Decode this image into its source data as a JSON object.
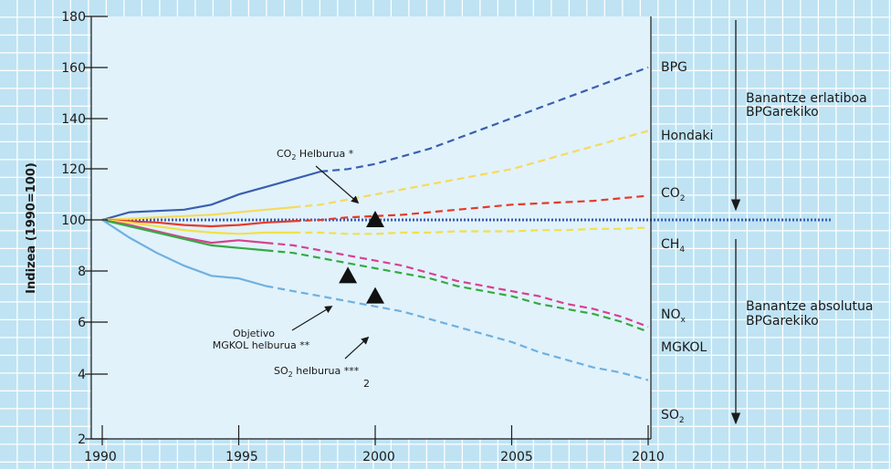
{
  "colors": {
    "background": "#bfe3f3",
    "background_grid": "#ffffff",
    "plot_area": "#e1f2fb",
    "axis": "#1a1a1a"
  },
  "chart_data": {
    "type": "line",
    "title": "",
    "xlabel": "",
    "ylabel": "Indizea (1990=100)",
    "xlim": [
      1990,
      2010
    ],
    "x_ticks": [
      "1990",
      "1995",
      "2000",
      "2005",
      "2010"
    ],
    "y_ticks": [
      "2",
      "4",
      "6",
      "8",
      "100",
      "120",
      "140",
      "160",
      "180"
    ],
    "y_scale": "custom broken axis: upper part 100–180 linear, lower part labelled 2–8 (index values below 100)",
    "grid": false,
    "series": [
      {
        "name": "BPG",
        "color": "#3a5fae",
        "solid_until": 1998,
        "points": [
          [
            1990,
            100
          ],
          [
            1991,
            103
          ],
          [
            1992,
            103.5
          ],
          [
            1993,
            104
          ],
          [
            1994,
            106
          ],
          [
            1995,
            110
          ],
          [
            1996,
            113
          ],
          [
            1997,
            116
          ],
          [
            1998,
            119
          ],
          [
            1999,
            120
          ],
          [
            2000,
            122
          ],
          [
            2001,
            125
          ],
          [
            2002,
            128
          ],
          [
            2003,
            132
          ],
          [
            2004,
            136
          ],
          [
            2005,
            140
          ],
          [
            2006,
            144
          ],
          [
            2007,
            148
          ],
          [
            2008,
            152
          ],
          [
            2009,
            156
          ],
          [
            2010,
            160
          ]
        ]
      },
      {
        "name": "Hondaki",
        "color": "#f7da5a",
        "solid_until": 1997,
        "points": [
          [
            1990,
            100
          ],
          [
            1991,
            100.5
          ],
          [
            1992,
            101
          ],
          [
            1993,
            101.5
          ],
          [
            1994,
            102
          ],
          [
            1995,
            103
          ],
          [
            1996,
            104
          ],
          [
            1997,
            105
          ],
          [
            1998,
            106
          ],
          [
            1999,
            108
          ],
          [
            2000,
            110
          ],
          [
            2001,
            112
          ],
          [
            2002,
            114
          ],
          [
            2003,
            116
          ],
          [
            2004,
            118
          ],
          [
            2005,
            120
          ],
          [
            2006,
            123
          ],
          [
            2007,
            126
          ],
          [
            2008,
            129
          ],
          [
            2009,
            132
          ],
          [
            2010,
            135
          ]
        ]
      },
      {
        "name": "CO₂",
        "color": "#e63a2a",
        "solid_until": 1997,
        "points": [
          [
            1990,
            100
          ],
          [
            1991,
            99.5
          ],
          [
            1992,
            99
          ],
          [
            1993,
            98
          ],
          [
            1994,
            97.5
          ],
          [
            1995,
            98
          ],
          [
            1996,
            99
          ],
          [
            1997,
            99.5
          ],
          [
            1998,
            100
          ],
          [
            1999,
            101
          ],
          [
            2000,
            101.5
          ],
          [
            2001,
            102
          ],
          [
            2002,
            103
          ],
          [
            2003,
            104
          ],
          [
            2004,
            105
          ],
          [
            2005,
            106
          ],
          [
            2006,
            106.5
          ],
          [
            2007,
            107
          ],
          [
            2008,
            107.5
          ],
          [
            2009,
            108.5
          ],
          [
            2010,
            109.5
          ]
        ]
      },
      {
        "name": "CH₄",
        "color": "#f2e04a",
        "solid_until": 1997,
        "points": [
          [
            1990,
            100
          ],
          [
            1991,
            99
          ],
          [
            1992,
            97.5
          ],
          [
            1993,
            96
          ],
          [
            1994,
            95
          ],
          [
            1995,
            94.5
          ],
          [
            1996,
            95
          ],
          [
            1997,
            95
          ],
          [
            1998,
            95
          ],
          [
            1999,
            94.5
          ],
          [
            2000,
            94.5
          ],
          [
            2001,
            95
          ],
          [
            2002,
            95
          ],
          [
            2003,
            95.5
          ],
          [
            2004,
            95.5
          ],
          [
            2005,
            95.5
          ],
          [
            2006,
            96
          ],
          [
            2007,
            96
          ],
          [
            2008,
            96.5
          ],
          [
            2009,
            96.5
          ],
          [
            2010,
            97
          ]
        ]
      },
      {
        "name": "NOₓ",
        "color": "#d8418f",
        "solid_until": 1996,
        "points": [
          [
            1990,
            100
          ],
          [
            1991,
            98
          ],
          [
            1992,
            95.5
          ],
          [
            1993,
            93
          ],
          [
            1994,
            91
          ],
          [
            1995,
            92
          ],
          [
            1996,
            91
          ],
          [
            1997,
            90
          ],
          [
            1998,
            88
          ],
          [
            1999,
            86
          ],
          [
            2000,
            84
          ],
          [
            2001,
            82
          ],
          [
            2002,
            79
          ],
          [
            2003,
            76
          ],
          [
            2004,
            74
          ],
          [
            2005,
            72
          ],
          [
            2006,
            70
          ],
          [
            2007,
            67
          ],
          [
            2008,
            65
          ],
          [
            2009,
            62
          ],
          [
            2010,
            58
          ]
        ]
      },
      {
        "name": "MGKOL",
        "color": "#36a944",
        "solid_until": 1996,
        "points": [
          [
            1990,
            100
          ],
          [
            1991,
            97.5
          ],
          [
            1992,
            95
          ],
          [
            1993,
            92.5
          ],
          [
            1994,
            90
          ],
          [
            1995,
            89
          ],
          [
            1996,
            88
          ],
          [
            1997,
            87
          ],
          [
            1998,
            85
          ],
          [
            1999,
            83
          ],
          [
            2000,
            81
          ],
          [
            2001,
            79
          ],
          [
            2002,
            77
          ],
          [
            2003,
            74
          ],
          [
            2004,
            72
          ],
          [
            2005,
            70
          ],
          [
            2006,
            67
          ],
          [
            2007,
            65
          ],
          [
            2008,
            63
          ],
          [
            2009,
            60
          ],
          [
            2010,
            56
          ]
        ]
      },
      {
        "name": "SO₂",
        "color": "#6fb0e0",
        "solid_until": 1996,
        "points": [
          [
            1990,
            100
          ],
          [
            1991,
            93
          ],
          [
            1992,
            87
          ],
          [
            1993,
            82
          ],
          [
            1994,
            78
          ],
          [
            1995,
            77
          ],
          [
            1996,
            74
          ],
          [
            1997,
            72
          ],
          [
            1998,
            70
          ],
          [
            1999,
            68
          ],
          [
            2000,
            66
          ],
          [
            2001,
            64
          ],
          [
            2002,
            61
          ],
          [
            2003,
            58
          ],
          [
            2004,
            55
          ],
          [
            2005,
            52
          ],
          [
            2006,
            48
          ],
          [
            2007,
            45
          ],
          [
            2008,
            42
          ],
          [
            2009,
            40
          ],
          [
            2010,
            37
          ]
        ]
      }
    ],
    "reference_line": {
      "y": 100,
      "color": "#3a5fae"
    },
    "targets": [
      {
        "label": "CO₂ Helburua *",
        "x": 2000,
        "y": 100
      },
      {
        "label": "Objetivo MGKOL helburua **",
        "x": 1999,
        "y": 78
      },
      {
        "label": "SO₂ helburua ***",
        "x": 2000,
        "y": 70
      }
    ],
    "annotations": {
      "co2_target": {
        "line1": "CO",
        "sub": "2",
        "line2": " Helburua *"
      },
      "mgkol_target": {
        "line1": "Objetivo",
        "line2": "MGKOL helburua **"
      },
      "so2_target": {
        "line1": "SO",
        "sub": "2",
        "line2": " helburua ***",
        "stray": "2"
      }
    },
    "series_labels": {
      "bpg": "BPG",
      "hondaki": "Hondaki",
      "co2": "CO",
      "co2_sub": "2",
      "ch4": "CH",
      "ch4_sub": "4",
      "nox": "NO",
      "nox_sub": "x",
      "mgkol": "MGKOL",
      "so2": "SO",
      "so2_sub": "2"
    },
    "right_notes": {
      "relative_line1": "Banantze erlatiboa",
      "relative_line2": "BPGarekiko",
      "absolute_line1": "Banantze absolutua",
      "absolute_line2": "BPGarekiko"
    }
  }
}
